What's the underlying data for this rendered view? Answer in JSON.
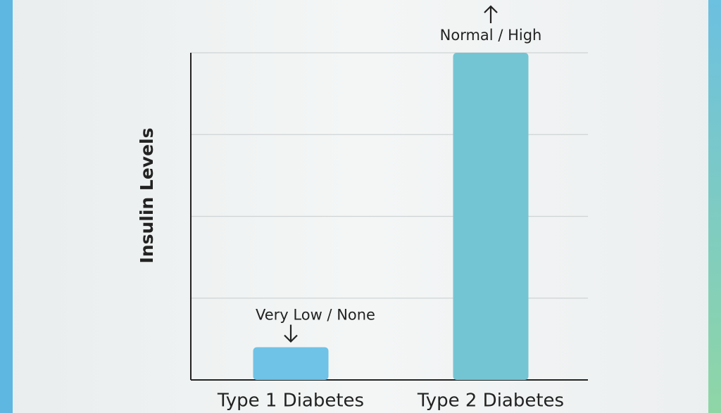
{
  "chart_data": {
    "type": "bar",
    "y_label": "Insulin Levels",
    "categories": [
      "Type 1 Diabetes",
      "Type 2 Diabetes"
    ],
    "values": [
      0.4,
      4
    ],
    "annotations": [
      "Very Low / None",
      "Normal / High"
    ],
    "colors": [
      "#6ec3e6",
      "#74c5d3"
    ],
    "ylim": [
      0,
      4
    ],
    "yticks": [
      0,
      1,
      2,
      3,
      4
    ],
    "grid": true
  }
}
